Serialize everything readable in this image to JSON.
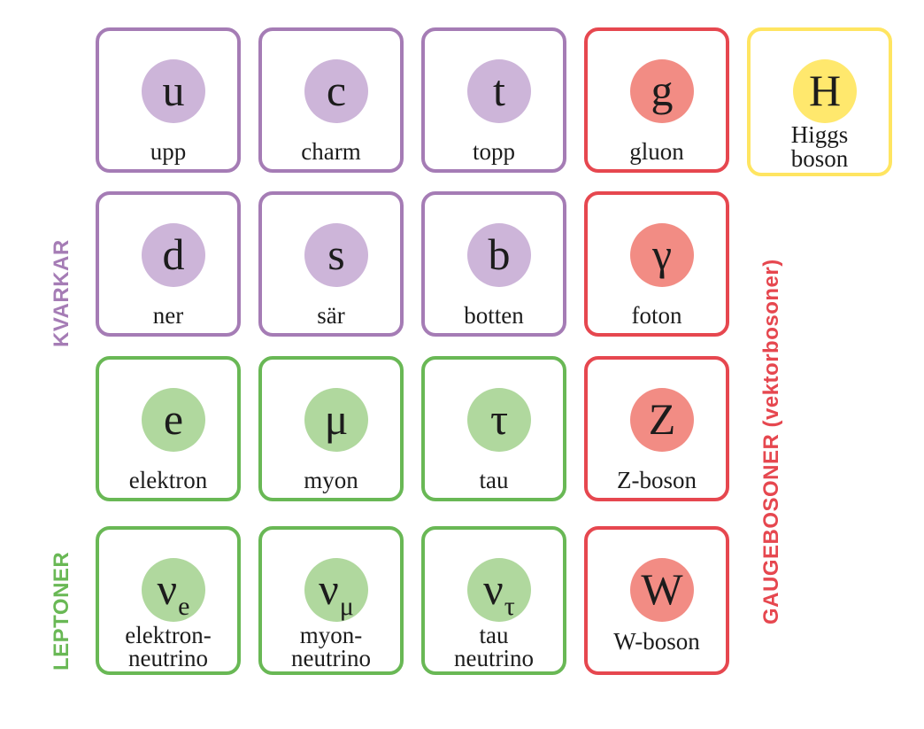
{
  "labels": {
    "quarks": "KVARKAR",
    "leptons": "LEPTONER",
    "gauge": "GAUGEBOSONER (vektorbosoner)"
  },
  "colors": {
    "quark_border": "#a57cb5",
    "quark_fill": "#cdb5d9",
    "lepton_border": "#69b855",
    "lepton_fill": "#b0d89e",
    "gauge_border": "#e6474f",
    "gauge_fill": "#f28c84",
    "higgs_border": "#ffe561",
    "higgs_fill": "#ffe86d"
  },
  "particles": {
    "up": {
      "symbol": "u",
      "name": "upp"
    },
    "charm": {
      "symbol": "c",
      "name": "charm"
    },
    "top": {
      "symbol": "t",
      "name": "topp"
    },
    "gluon": {
      "symbol": "g",
      "name": "gluon"
    },
    "higgs": {
      "symbol": "H",
      "name_line1": "Higgs",
      "name_line2": "boson"
    },
    "down": {
      "symbol": "d",
      "name": "ner"
    },
    "strange": {
      "symbol": "s",
      "name": "sär"
    },
    "bottom": {
      "symbol": "b",
      "name": "botten"
    },
    "photon": {
      "symbol": "γ",
      "name": "foton"
    },
    "electron": {
      "symbol": "e",
      "name": "elektron"
    },
    "muon": {
      "symbol": "μ",
      "name": "myon"
    },
    "tau": {
      "symbol": "τ",
      "name": "tau"
    },
    "z_boson": {
      "symbol": "Z",
      "name": "Z-boson"
    },
    "nu_e": {
      "symbol": "ν",
      "subscript": "e",
      "name_line1": "elektron-",
      "name_line2": "neutrino"
    },
    "nu_mu": {
      "symbol": "ν",
      "subscript": "μ",
      "name_line1": "myon-",
      "name_line2": "neutrino"
    },
    "nu_tau": {
      "symbol": "ν",
      "subscript": "τ",
      "name_line1": "tau",
      "name_line2": "neutrino"
    },
    "w_boson": {
      "symbol": "W",
      "name": "W-boson"
    }
  }
}
